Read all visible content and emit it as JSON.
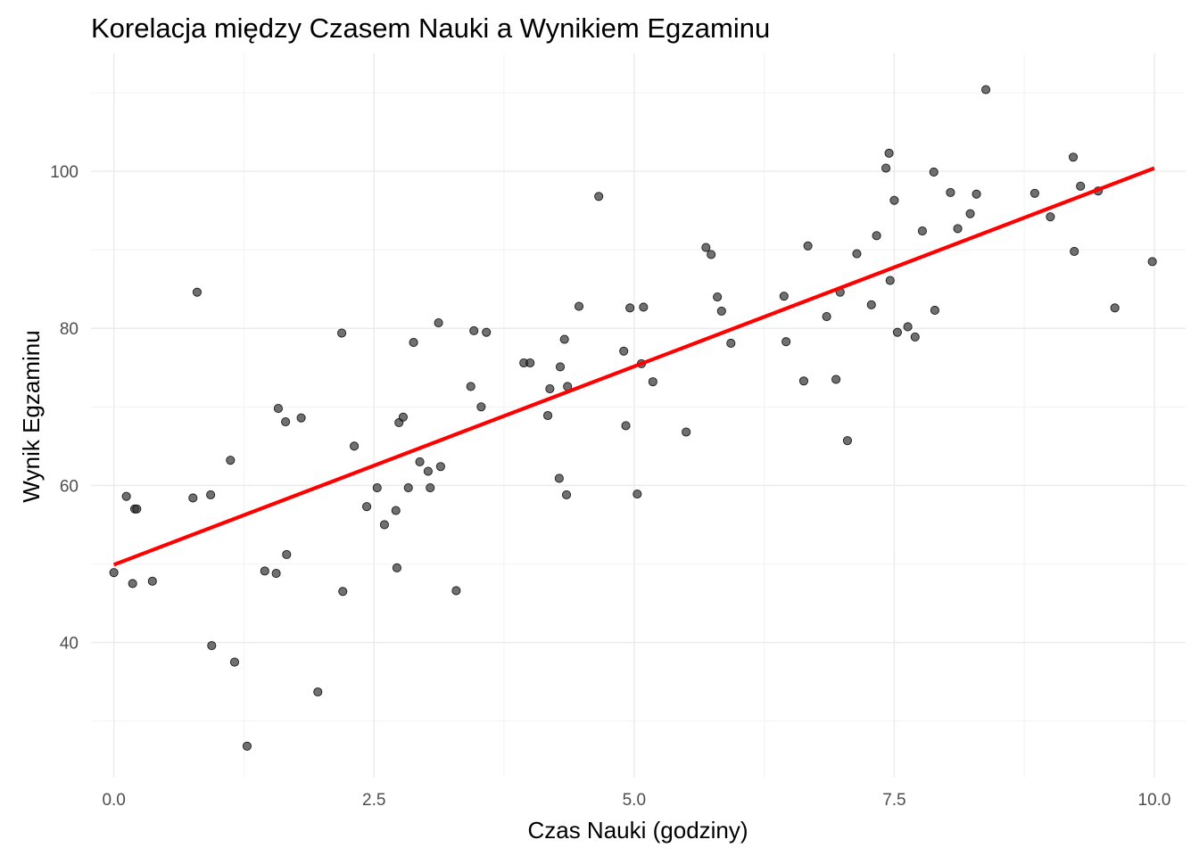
{
  "chart_data": {
    "type": "scatter",
    "title": "Korelacja między Czasem Nauki a Wynikiem Egzaminu",
    "xlabel": "Czas Nauki (godziny)",
    "ylabel": "Wynik Egzaminu",
    "xlim": [
      -0.22,
      10.3
    ],
    "ylim": [
      22.8,
      115
    ],
    "x_ticks": [
      0.0,
      2.5,
      5.0,
      7.5,
      10.0
    ],
    "x_tick_labels": [
      "0.0",
      "2.5",
      "5.0",
      "7.5",
      "10.0"
    ],
    "y_ticks": [
      40,
      60,
      80,
      100
    ],
    "y_tick_labels": [
      "40",
      "60",
      "80",
      "100"
    ],
    "grid": true,
    "legend": "none",
    "point_color": "#333333",
    "point_opacity": 0.7,
    "trend_line": {
      "color": "#ff0000",
      "x": [
        0.0,
        10.0
      ],
      "y": [
        49.9,
        100.4
      ]
    },
    "points": [
      {
        "x": 0.0,
        "y": 48.9
      },
      {
        "x": 0.12,
        "y": 58.6
      },
      {
        "x": 0.18,
        "y": 47.5
      },
      {
        "x": 0.2,
        "y": 57.0
      },
      {
        "x": 0.22,
        "y": 57.0
      },
      {
        "x": 0.37,
        "y": 47.8
      },
      {
        "x": 0.76,
        "y": 58.4
      },
      {
        "x": 0.8,
        "y": 84.6
      },
      {
        "x": 0.93,
        "y": 58.8
      },
      {
        "x": 0.94,
        "y": 39.6
      },
      {
        "x": 1.12,
        "y": 63.2
      },
      {
        "x": 1.16,
        "y": 37.5
      },
      {
        "x": 1.28,
        "y": 26.8
      },
      {
        "x": 1.45,
        "y": 49.1
      },
      {
        "x": 1.56,
        "y": 48.8
      },
      {
        "x": 1.58,
        "y": 69.8
      },
      {
        "x": 1.65,
        "y": 68.1
      },
      {
        "x": 1.66,
        "y": 51.2
      },
      {
        "x": 1.8,
        "y": 68.6
      },
      {
        "x": 1.96,
        "y": 33.7
      },
      {
        "x": 2.19,
        "y": 79.4
      },
      {
        "x": 2.2,
        "y": 46.5
      },
      {
        "x": 2.31,
        "y": 65.0
      },
      {
        "x": 2.43,
        "y": 57.3
      },
      {
        "x": 2.53,
        "y": 59.7
      },
      {
        "x": 2.6,
        "y": 55.0
      },
      {
        "x": 2.71,
        "y": 56.8
      },
      {
        "x": 2.72,
        "y": 49.5
      },
      {
        "x": 2.74,
        "y": 68.0
      },
      {
        "x": 2.78,
        "y": 68.7
      },
      {
        "x": 2.83,
        "y": 59.7
      },
      {
        "x": 2.88,
        "y": 78.2
      },
      {
        "x": 2.94,
        "y": 63.0
      },
      {
        "x": 3.02,
        "y": 61.8
      },
      {
        "x": 3.04,
        "y": 59.7
      },
      {
        "x": 3.12,
        "y": 80.7
      },
      {
        "x": 3.14,
        "y": 62.4
      },
      {
        "x": 3.29,
        "y": 46.6
      },
      {
        "x": 3.43,
        "y": 72.6
      },
      {
        "x": 3.46,
        "y": 79.7
      },
      {
        "x": 3.53,
        "y": 70.0
      },
      {
        "x": 3.58,
        "y": 79.5
      },
      {
        "x": 3.94,
        "y": 75.6
      },
      {
        "x": 4.0,
        "y": 75.6
      },
      {
        "x": 4.17,
        "y": 68.9
      },
      {
        "x": 4.19,
        "y": 72.3
      },
      {
        "x": 4.28,
        "y": 60.9
      },
      {
        "x": 4.29,
        "y": 75.1
      },
      {
        "x": 4.33,
        "y": 78.6
      },
      {
        "x": 4.35,
        "y": 58.8
      },
      {
        "x": 4.36,
        "y": 72.6
      },
      {
        "x": 4.47,
        "y": 82.8
      },
      {
        "x": 4.66,
        "y": 96.8
      },
      {
        "x": 4.9,
        "y": 77.1
      },
      {
        "x": 4.92,
        "y": 67.6
      },
      {
        "x": 4.96,
        "y": 82.6
      },
      {
        "x": 5.03,
        "y": 58.9
      },
      {
        "x": 5.07,
        "y": 75.5
      },
      {
        "x": 5.09,
        "y": 82.7
      },
      {
        "x": 5.18,
        "y": 73.2
      },
      {
        "x": 5.5,
        "y": 66.8
      },
      {
        "x": 5.69,
        "y": 90.3
      },
      {
        "x": 5.74,
        "y": 89.4
      },
      {
        "x": 5.8,
        "y": 84.0
      },
      {
        "x": 5.84,
        "y": 82.2
      },
      {
        "x": 5.93,
        "y": 78.1
      },
      {
        "x": 6.44,
        "y": 84.1
      },
      {
        "x": 6.46,
        "y": 78.3
      },
      {
        "x": 6.63,
        "y": 73.3
      },
      {
        "x": 6.67,
        "y": 90.5
      },
      {
        "x": 6.85,
        "y": 81.5
      },
      {
        "x": 6.94,
        "y": 73.5
      },
      {
        "x": 6.98,
        "y": 84.6
      },
      {
        "x": 7.05,
        "y": 65.7
      },
      {
        "x": 7.14,
        "y": 89.5
      },
      {
        "x": 7.28,
        "y": 83.0
      },
      {
        "x": 7.33,
        "y": 91.8
      },
      {
        "x": 7.42,
        "y": 100.4
      },
      {
        "x": 7.45,
        "y": 102.3
      },
      {
        "x": 7.46,
        "y": 86.1
      },
      {
        "x": 7.5,
        "y": 96.3
      },
      {
        "x": 7.53,
        "y": 79.5
      },
      {
        "x": 7.63,
        "y": 80.2
      },
      {
        "x": 7.7,
        "y": 78.9
      },
      {
        "x": 7.77,
        "y": 92.4
      },
      {
        "x": 7.88,
        "y": 99.9
      },
      {
        "x": 7.89,
        "y": 82.3
      },
      {
        "x": 8.04,
        "y": 97.3
      },
      {
        "x": 8.11,
        "y": 92.7
      },
      {
        "x": 8.23,
        "y": 94.6
      },
      {
        "x": 8.29,
        "y": 97.1
      },
      {
        "x": 8.38,
        "y": 110.4
      },
      {
        "x": 8.85,
        "y": 97.2
      },
      {
        "x": 9.0,
        "y": 94.2
      },
      {
        "x": 9.22,
        "y": 101.8
      },
      {
        "x": 9.23,
        "y": 89.8
      },
      {
        "x": 9.29,
        "y": 98.1
      },
      {
        "x": 9.46,
        "y": 97.5
      },
      {
        "x": 9.62,
        "y": 82.6
      },
      {
        "x": 9.98,
        "y": 88.5
      }
    ]
  }
}
